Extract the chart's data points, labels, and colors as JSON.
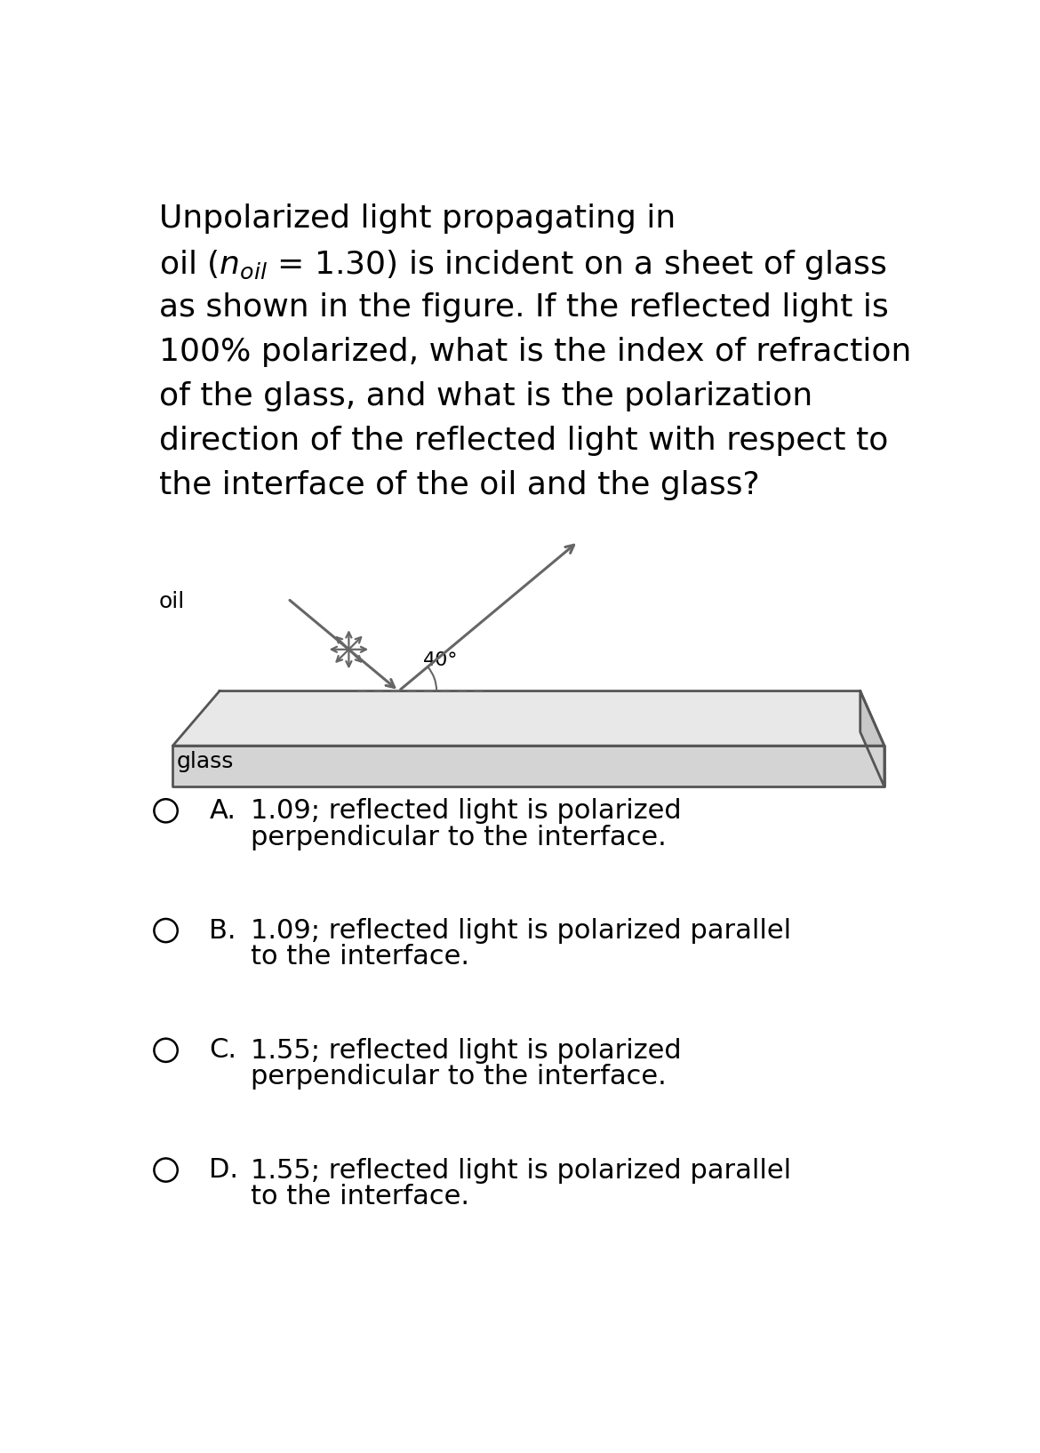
{
  "bg_color": "#ffffff",
  "text_color": "#000000",
  "question_lines": [
    "Unpolarized light propagating in",
    "oil ($n_{oil}$ = 1.30) is incident on a sheet of glass",
    "as shown in the figure. If the reflected light is",
    "100% polarized, what is the index of refraction",
    "of the glass, and what is the polarization",
    "direction of the reflected light with respect to",
    "the interface of the oil and the glass?"
  ],
  "options": [
    [
      "A.",
      "1.09; reflected light is polarized",
      "perpendicular to the interface."
    ],
    [
      "B.",
      "1.09; reflected light is polarized parallel",
      "to the interface."
    ],
    [
      "C.",
      "1.55; reflected light is polarized",
      "perpendicular to the interface."
    ],
    [
      "D.",
      "1.55; reflected light is polarized parallel",
      "to the interface."
    ]
  ],
  "diagram": {
    "glass_color": "#e8e8e8",
    "glass_edge_color": "#555555",
    "glass_side_color": "#c8c8c8",
    "front_face_color": "#d4d4d4",
    "arrow_color": "#666666",
    "angle_label": "40°",
    "oil_label": "oil",
    "glass_label": "glass"
  }
}
